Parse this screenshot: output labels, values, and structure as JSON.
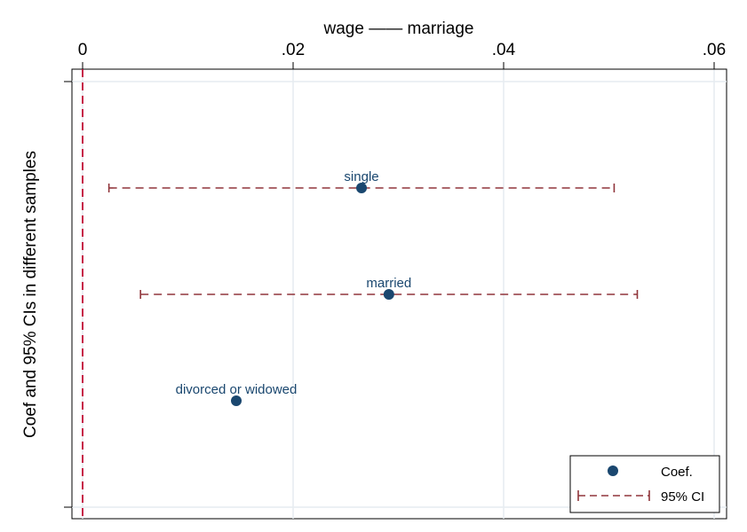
{
  "chart_data": {
    "type": "scatter",
    "title": "wage —— marriage",
    "xlabel": "",
    "ylabel": "Coef and 95% CIs in different samples",
    "xlim": [
      0,
      0.06
    ],
    "xticks": [
      {
        "value": 0,
        "label": "0"
      },
      {
        "value": 0.02,
        "label": ".02"
      },
      {
        "value": 0.04,
        "label": ".04"
      },
      {
        "value": 0.06,
        "label": ".06"
      }
    ],
    "x_axis_position": "top",
    "grid": true,
    "reference_line": {
      "x": 0,
      "style": "dashed",
      "color": "#c10534"
    },
    "points": [
      {
        "label": "single",
        "coef": 0.0265,
        "ci_low": 0.0025,
        "ci_high": 0.0505
      },
      {
        "label": "married",
        "coef": 0.0291,
        "ci_low": 0.0055,
        "ci_high": 0.0527
      },
      {
        "label": "divorced or widowed",
        "coef": 0.0146,
        "ci_low": null,
        "ci_high": null
      }
    ],
    "legend": {
      "position": "bottom-right",
      "entries": [
        {
          "label": "Coef.",
          "marker": "circle"
        },
        {
          "label": "95% CI",
          "marker": "dashed-capped-line"
        }
      ]
    },
    "colors": {
      "marker": "#1a476f",
      "ci": "#90353b",
      "reference": "#c10534",
      "grid": "#e6ecf0"
    }
  }
}
